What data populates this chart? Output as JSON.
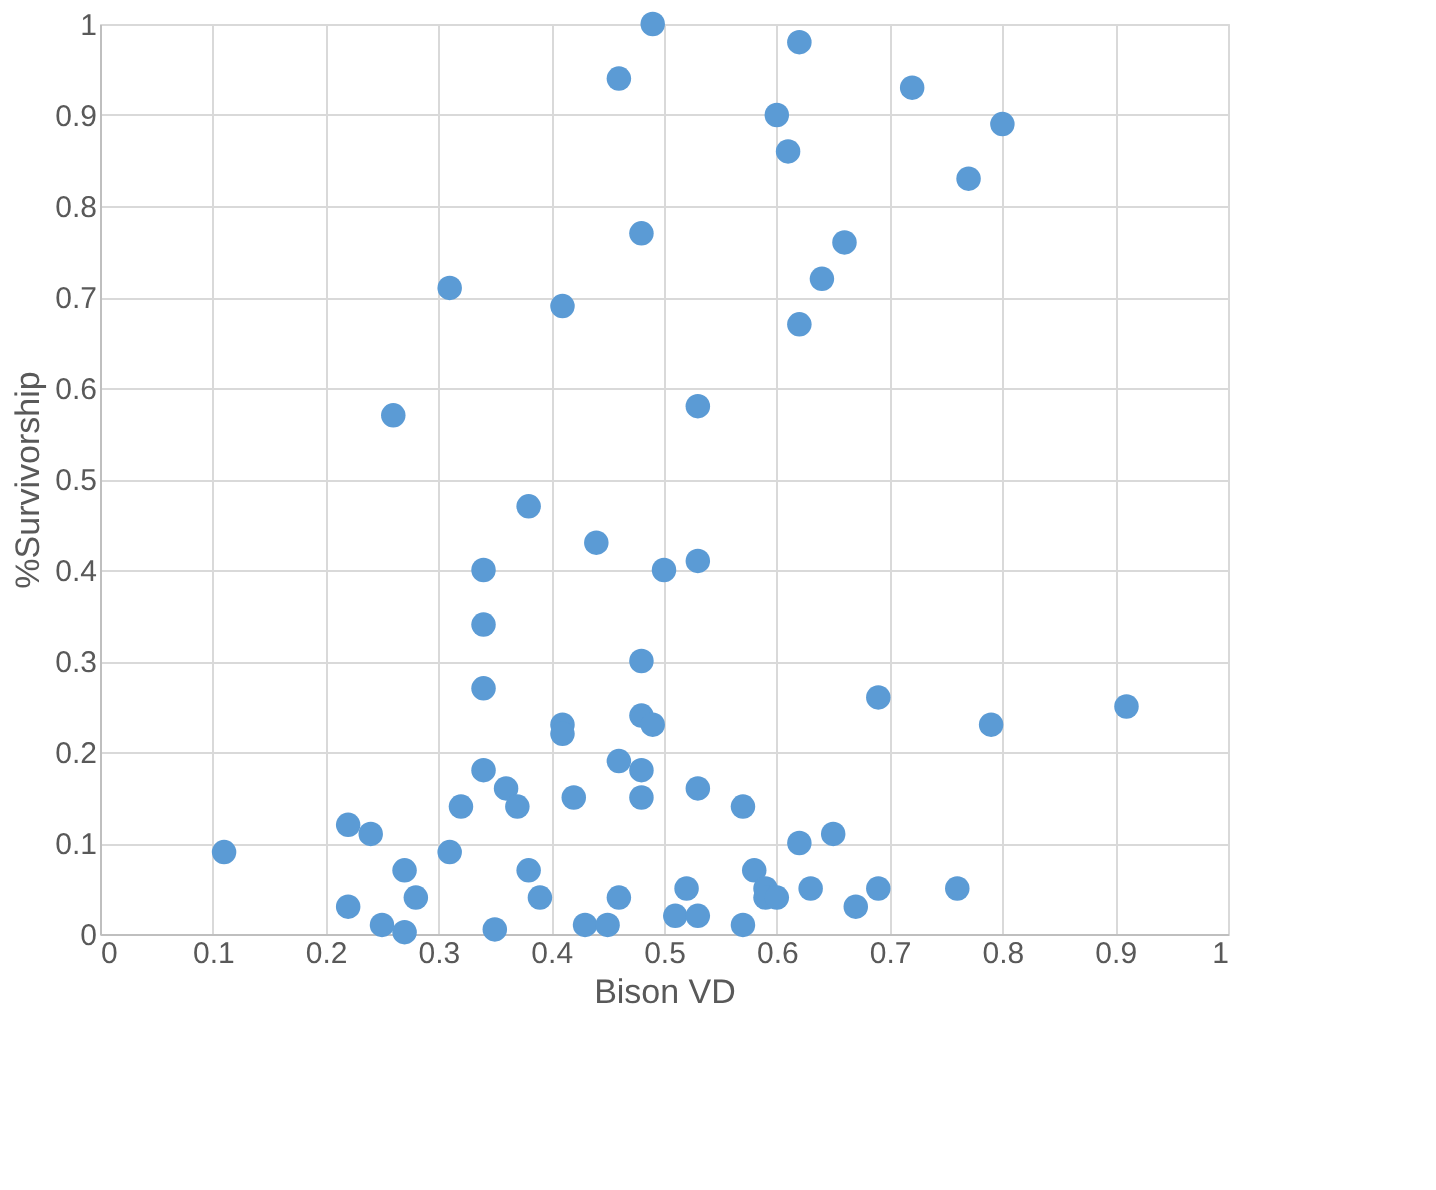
{
  "chart_data": {
    "type": "scatter",
    "xlabel": "Bison VD",
    "ylabel": "%Survivorship",
    "marker": "circle",
    "grid": true,
    "xlim": [
      0,
      1
    ],
    "xticks": [
      0,
      0.1,
      0.2,
      0.3,
      0.4,
      0.5,
      0.6,
      0.7,
      0.8,
      0.9,
      1
    ],
    "ylim": [
      0,
      1
    ],
    "yticks": [
      0,
      0.1,
      0.2,
      0.3,
      0.4,
      0.5,
      0.6,
      0.7,
      0.8,
      0.9,
      1
    ],
    "series": [
      {
        "color": "#5b9bd5",
        "x": [
          0.49,
          0.62,
          0.46,
          0.72,
          0.6,
          0.8,
          0.61,
          0.77,
          0.48,
          0.66,
          0.64,
          0.31,
          0.41,
          0.62,
          0.26,
          0.53,
          0.38,
          0.44,
          0.34,
          0.5,
          0.53,
          0.34,
          0.48,
          0.34,
          0.69,
          0.91,
          0.48,
          0.49,
          0.79,
          0.41,
          0.41,
          0.46,
          0.34,
          0.48,
          0.36,
          0.53,
          0.42,
          0.48,
          0.37,
          0.32,
          0.57,
          0.22,
          0.24,
          0.65,
          0.62,
          0.11,
          0.31,
          0.27,
          0.38,
          0.58,
          0.52,
          0.63,
          0.69,
          0.76,
          0.59,
          0.59,
          0.6,
          0.28,
          0.39,
          0.46,
          0.22,
          0.67,
          0.25,
          0.43,
          0.45,
          0.51,
          0.53,
          0.57,
          0.27,
          0.35
        ],
        "values": [
          1.0,
          0.98,
          0.94,
          0.93,
          0.9,
          0.89,
          0.86,
          0.83,
          0.77,
          0.76,
          0.72,
          0.71,
          0.69,
          0.67,
          0.57,
          0.58,
          0.47,
          0.43,
          0.4,
          0.4,
          0.41,
          0.34,
          0.3,
          0.27,
          0.26,
          0.25,
          0.24,
          0.23,
          0.23,
          0.23,
          0.22,
          0.19,
          0.18,
          0.18,
          0.16,
          0.16,
          0.15,
          0.15,
          0.14,
          0.14,
          0.14,
          0.12,
          0.11,
          0.11,
          0.1,
          0.09,
          0.09,
          0.07,
          0.07,
          0.07,
          0.05,
          0.05,
          0.05,
          0.05,
          0.05,
          0.04,
          0.04,
          0.04,
          0.04,
          0.04,
          0.03,
          0.03,
          0.01,
          0.01,
          0.01,
          0.02,
          0.02,
          0.01,
          0.002,
          0.005
        ]
      }
    ]
  }
}
